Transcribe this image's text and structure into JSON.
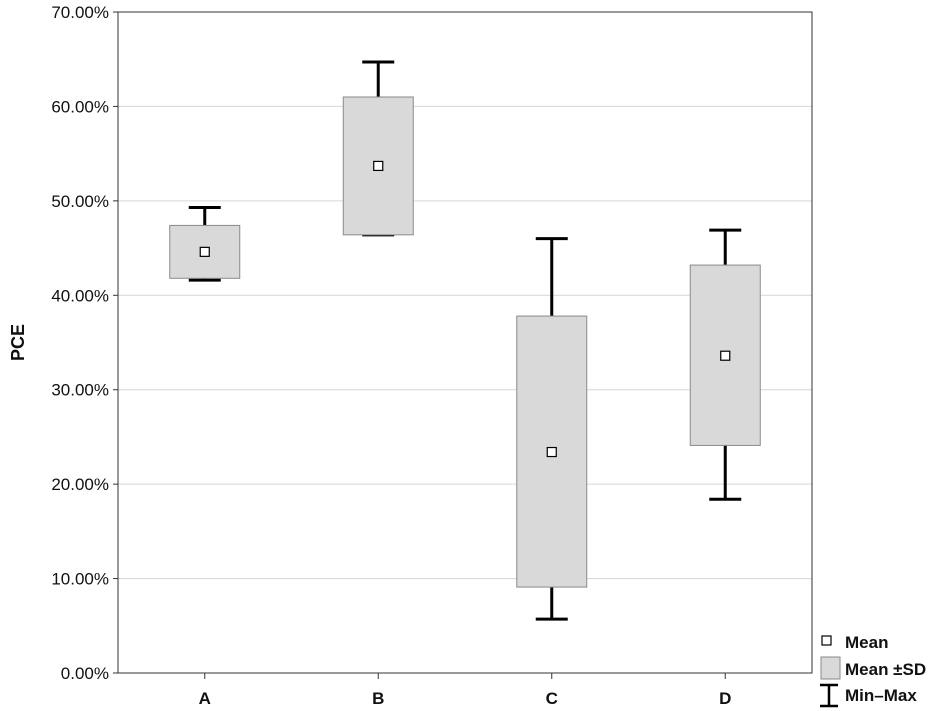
{
  "chart_data": {
    "type": "box",
    "ylabel": "PCE",
    "xlabel": "",
    "ylim": [
      0,
      70
    ],
    "yticks": [
      0,
      10,
      20,
      30,
      40,
      50,
      60,
      70
    ],
    "ytick_labels": [
      "0.00%",
      "10.00%",
      "20.00%",
      "30.00%",
      "40.00%",
      "50.00%",
      "60.00%",
      "70.00%"
    ],
    "categories": [
      "A",
      "B",
      "C",
      "D"
    ],
    "series": [
      {
        "category": "A",
        "mean": 44.6,
        "mean_minus_sd": 41.8,
        "mean_plus_sd": 47.4,
        "min": 41.6,
        "max": 49.3
      },
      {
        "category": "B",
        "mean": 53.7,
        "mean_minus_sd": 46.4,
        "mean_plus_sd": 61.0,
        "min": 46.4,
        "max": 64.7
      },
      {
        "category": "C",
        "mean": 23.4,
        "mean_minus_sd": 9.1,
        "mean_plus_sd": 37.8,
        "min": 5.7,
        "max": 46.0
      },
      {
        "category": "D",
        "mean": 33.6,
        "mean_minus_sd": 24.1,
        "mean_plus_sd": 43.2,
        "min": 18.4,
        "max": 46.9
      }
    ],
    "grid": true,
    "legend_position": "bottom-right",
    "legend": [
      {
        "label": "Mean",
        "symbol": "square-marker"
      },
      {
        "label": "Mean ±SD",
        "symbol": "box"
      },
      {
        "label": "Min–Max",
        "symbol": "whisker"
      }
    ],
    "colors": {
      "box_fill": "#d9d9d9",
      "box_stroke": "#8a8a8a",
      "whisker": "#000000",
      "grid": "#d6d6d6",
      "frame": "#333333"
    }
  }
}
